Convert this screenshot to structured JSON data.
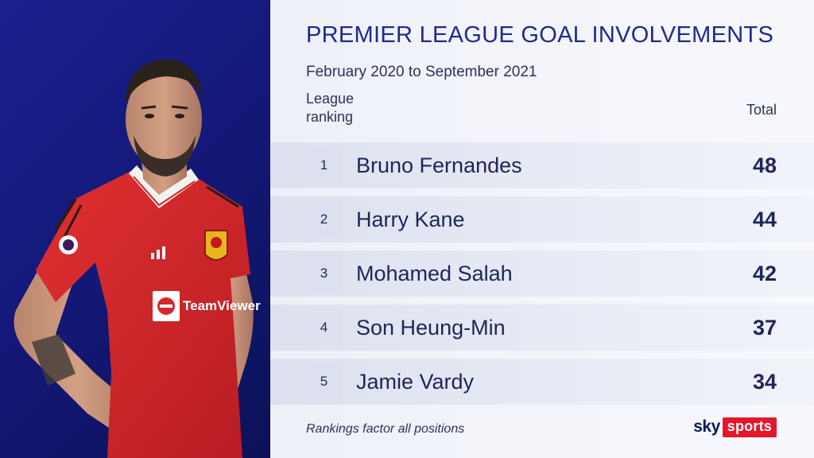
{
  "graphic": {
    "title": "PREMIER LEAGUE GOAL INVOLVEMENTS",
    "subtitle": "February 2020 to September 2021",
    "rank_header": "League ranking",
    "total_header": "Total",
    "footnote": "Rankings factor all positions"
  },
  "rankings": [
    {
      "rank": "1",
      "name": "Bruno Fernandes",
      "total": "48"
    },
    {
      "rank": "2",
      "name": "Harry Kane",
      "total": "44"
    },
    {
      "rank": "3",
      "name": "Mohamed Salah",
      "total": "42"
    },
    {
      "rank": "4",
      "name": "Son Heung-Min",
      "total": "37"
    },
    {
      "rank": "5",
      "name": "Jamie Vardy",
      "total": "34"
    }
  ],
  "branding": {
    "sky": "sky",
    "sports": "sports",
    "sports_color": "#e5162b"
  },
  "player_photo": {
    "shirt_sponsor": "TeamViewer",
    "shirt_brand": "adidas"
  },
  "colors": {
    "left_panel": "#1a1f8f",
    "title_text": "#1e2a8f",
    "row_text": "#1e2659",
    "shirt_red": "#d9262b"
  }
}
